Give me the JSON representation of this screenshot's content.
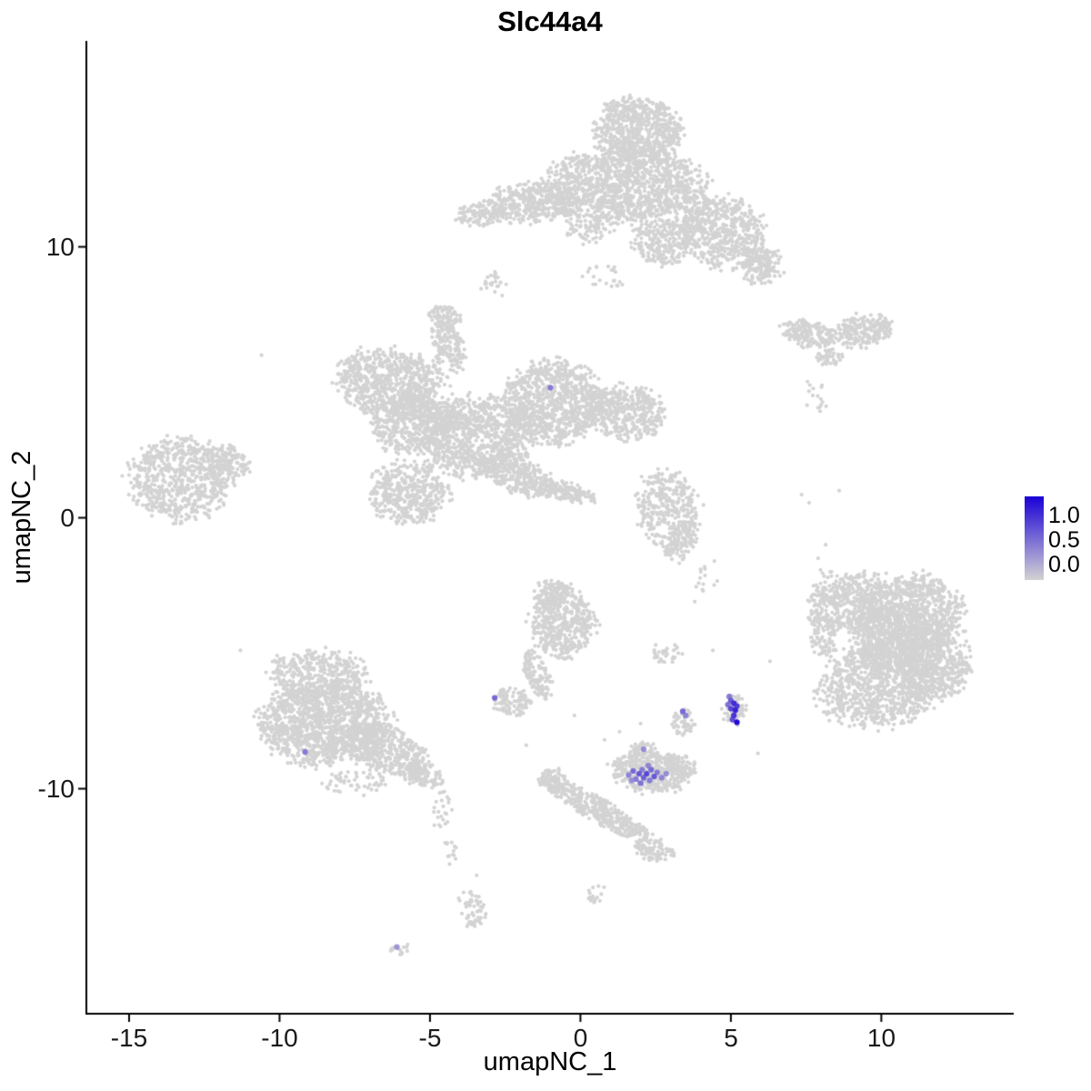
{
  "title": "Slc44a4",
  "axes": {
    "x_label": "umapNC_1",
    "y_label": "umapNC_2",
    "x_ticks": [
      "-15",
      "-10",
      "-5",
      "0",
      "5",
      "10"
    ],
    "y_ticks": [
      "10",
      "0",
      "-10"
    ],
    "x_tick_values": [
      -15,
      -10,
      -5,
      0,
      5,
      10
    ],
    "y_tick_values": [
      10,
      0,
      -10
    ],
    "x_range": [
      -16.42,
      14.4
    ],
    "y_range": [
      -18.31,
      17.6
    ]
  },
  "legend": {
    "tick_labels": [
      "1.0",
      "0.5",
      "0.0"
    ]
  },
  "chart_data": {
    "type": "scatter",
    "title": "Slc44a4",
    "xlabel": "umapNC_1",
    "ylabel": "umapNC_2",
    "description": "UMAP feature plot of gene expression for Slc44a4; grey cells have zero expression, purple-blue cells express the gene",
    "color_low": "#d3d3d3",
    "color_high": "#1a00d6",
    "color_scale_ticks": [
      1.0,
      0.5,
      0.0
    ],
    "color_max": 1.2,
    "point_radius": 2.1,
    "expressing_point_radius": 3.1,
    "clusters_format": "[center_x, center_y, radius_x, radius_y, rotation_deg, n_cells]",
    "clusters": [
      [
        1.9,
        14.3,
        1.5,
        1.15,
        0,
        650
      ],
      [
        1.5,
        12.3,
        2.6,
        1.35,
        0,
        1250
      ],
      [
        -1.6,
        11.6,
        1.6,
        0.75,
        5,
        420
      ],
      [
        -3.3,
        11.2,
        0.8,
        0.45,
        10,
        110
      ],
      [
        4.7,
        10.6,
        1.5,
        1.3,
        -20,
        580
      ],
      [
        6.0,
        9.3,
        0.75,
        0.7,
        0,
        170
      ],
      [
        2.7,
        10.2,
        1.0,
        0.9,
        0,
        250
      ],
      [
        0.3,
        10.7,
        0.8,
        0.6,
        0,
        80
      ],
      [
        -2.8,
        8.6,
        0.5,
        0.45,
        0,
        22
      ],
      [
        0.9,
        8.9,
        1.0,
        0.5,
        0,
        22
      ],
      [
        -6.3,
        5.0,
        1.8,
        1.25,
        -10,
        750
      ],
      [
        -5.6,
        3.5,
        1.4,
        1.1,
        0,
        480
      ],
      [
        -3.5,
        3.0,
        1.9,
        1.5,
        0,
        950
      ],
      [
        -4.4,
        6.3,
        0.55,
        0.95,
        15,
        150
      ],
      [
        -4.5,
        7.4,
        0.5,
        0.45,
        0,
        85
      ],
      [
        -0.9,
        4.3,
        1.6,
        1.5,
        0,
        850
      ],
      [
        1.5,
        3.9,
        1.3,
        1.0,
        -15,
        420
      ],
      [
        -5.7,
        0.9,
        1.3,
        1.2,
        0,
        430
      ],
      [
        -2.0,
        1.5,
        1.5,
        0.6,
        -20,
        330
      ],
      [
        -0.3,
        0.9,
        0.8,
        0.35,
        -15,
        110
      ],
      [
        -13.3,
        1.4,
        1.75,
        1.5,
        0,
        680
      ],
      [
        -11.7,
        2.1,
        0.8,
        0.55,
        -25,
        110
      ],
      [
        7.6,
        6.8,
        0.95,
        0.5,
        -12,
        170
      ],
      [
        9.4,
        6.9,
        1.0,
        0.6,
        8,
        210
      ],
      [
        8.3,
        5.9,
        0.5,
        0.3,
        0,
        45
      ],
      [
        7.8,
        4.5,
        0.4,
        0.7,
        0,
        16
      ],
      [
        8.9,
        -3.1,
        1.4,
        1.0,
        20,
        420
      ],
      [
        10.9,
        -3.6,
        1.8,
        1.5,
        0,
        850
      ],
      [
        9.9,
        -6.2,
        2.0,
        1.5,
        10,
        850
      ],
      [
        11.8,
        -5.4,
        1.2,
        1.3,
        0,
        400
      ],
      [
        10.6,
        -4.6,
        1.6,
        1.4,
        0,
        650
      ],
      [
        8.1,
        -4.3,
        0.5,
        0.8,
        0,
        80
      ],
      [
        8.2,
        -2.4,
        0.35,
        0.6,
        0,
        18
      ],
      [
        2.95,
        0.3,
        1.05,
        1.5,
        10,
        380
      ],
      [
        3.3,
        -1.0,
        0.6,
        0.6,
        0,
        60
      ],
      [
        4.2,
        -2.2,
        0.5,
        0.5,
        0,
        12
      ],
      [
        -8.7,
        -5.8,
        1.7,
        0.9,
        0,
        400
      ],
      [
        -8.5,
        -7.6,
        2.2,
        1.5,
        0,
        1250
      ],
      [
        -6.5,
        -8.6,
        1.5,
        0.85,
        -25,
        430
      ],
      [
        -5.3,
        -9.5,
        0.7,
        0.45,
        -20,
        110
      ],
      [
        -7.5,
        -9.8,
        1.2,
        0.5,
        0,
        55
      ],
      [
        -4.6,
        -10.8,
        0.4,
        0.8,
        0,
        22
      ],
      [
        -4.3,
        -12.3,
        0.3,
        0.6,
        0,
        12
      ],
      [
        -0.6,
        -3.9,
        1.1,
        1.25,
        0,
        430
      ],
      [
        -0.9,
        -2.8,
        0.65,
        0.5,
        0,
        110
      ],
      [
        -1.4,
        -5.8,
        0.4,
        0.95,
        20,
        120
      ],
      [
        -2.3,
        -6.8,
        0.65,
        0.5,
        0,
        100
      ],
      [
        2.9,
        -5.0,
        0.55,
        0.35,
        0,
        30
      ],
      [
        2.3,
        -9.4,
        1.3,
        0.75,
        -5,
        400
      ],
      [
        2.1,
        -8.6,
        0.45,
        0.35,
        0,
        55
      ],
      [
        3.3,
        -9.2,
        0.5,
        0.45,
        0,
        85
      ],
      [
        3.4,
        -7.5,
        0.4,
        0.55,
        0,
        55
      ],
      [
        5.1,
        -7.1,
        0.42,
        0.6,
        0,
        60
      ],
      [
        0.6,
        -10.8,
        2.2,
        0.42,
        -33,
        400
      ],
      [
        -0.9,
        -9.7,
        0.5,
        0.4,
        0,
        65
      ],
      [
        2.5,
        -12.3,
        0.65,
        0.45,
        -20,
        85
      ],
      [
        0.5,
        -13.9,
        0.35,
        0.5,
        0,
        14
      ],
      [
        -3.6,
        -14.5,
        0.4,
        0.75,
        15,
        55
      ],
      [
        -6.0,
        -15.9,
        0.35,
        0.25,
        0,
        14
      ]
    ],
    "scattered_points_format": "[x, y] single zero-expression cells",
    "scattered_points": [
      [
        -10.6,
        6.0
      ],
      [
        -3.3,
        8.45
      ],
      [
        -2.6,
        8.2
      ],
      [
        4.0,
        -2.0
      ],
      [
        3.8,
        -3.1
      ],
      [
        4.45,
        -1.6
      ],
      [
        7.35,
        0.85
      ],
      [
        7.6,
        0.55
      ],
      [
        8.15,
        -1.0
      ],
      [
        7.9,
        -1.5
      ],
      [
        -4.65,
        -11.4
      ],
      [
        -4.5,
        -12.0
      ],
      [
        0.45,
        -14.2
      ],
      [
        0.6,
        -13.6
      ],
      [
        -3.45,
        -13.2
      ],
      [
        2.0,
        -7.6
      ],
      [
        1.3,
        -7.9
      ],
      [
        4.4,
        -4.9
      ],
      [
        2.5,
        -4.7
      ],
      [
        3.1,
        -4.9
      ],
      [
        -0.2,
        -7.3
      ],
      [
        5.9,
        -8.7
      ],
      [
        -11.3,
        -4.9
      ],
      [
        8.6,
        1.0
      ],
      [
        8.3,
        -2.0
      ],
      [
        6.3,
        -5.3
      ],
      [
        -1.8,
        -8.4
      ],
      [
        0.8,
        -8.2
      ]
    ],
    "expressing_points_format": "[x, y, expression_value]",
    "expressing_points": [
      [
        -1.0,
        4.8,
        0.5
      ],
      [
        -9.15,
        -8.65,
        0.5
      ],
      [
        -2.85,
        -6.65,
        0.6
      ],
      [
        -6.1,
        -15.85,
        0.35
      ],
      [
        1.6,
        -9.5,
        0.45
      ],
      [
        1.75,
        -9.35,
        0.6
      ],
      [
        1.85,
        -9.65,
        0.5
      ],
      [
        1.95,
        -9.45,
        0.7
      ],
      [
        2.05,
        -9.3,
        0.5
      ],
      [
        2.1,
        -9.6,
        0.65
      ],
      [
        2.2,
        -9.45,
        0.8
      ],
      [
        2.3,
        -9.7,
        0.5
      ],
      [
        2.35,
        -9.3,
        0.6
      ],
      [
        2.45,
        -9.55,
        0.7
      ],
      [
        2.55,
        -9.4,
        0.5
      ],
      [
        2.7,
        -9.6,
        0.45
      ],
      [
        2.85,
        -9.45,
        0.4
      ],
      [
        2.0,
        -9.8,
        0.55
      ],
      [
        2.25,
        -9.15,
        0.45
      ],
      [
        1.7,
        -9.7,
        0.4
      ],
      [
        2.1,
        -8.55,
        0.4
      ],
      [
        3.4,
        -7.15,
        0.6
      ],
      [
        3.5,
        -7.3,
        0.45
      ],
      [
        5.0,
        -6.75,
        0.7
      ],
      [
        5.1,
        -6.85,
        0.95
      ],
      [
        5.2,
        -6.95,
        0.85
      ],
      [
        5.0,
        -7.05,
        0.8
      ],
      [
        5.15,
        -7.1,
        1.0
      ],
      [
        4.9,
        -6.9,
        0.55
      ],
      [
        5.1,
        -7.3,
        0.9
      ],
      [
        5.2,
        -7.55,
        1.15
      ],
      [
        5.05,
        -7.45,
        0.75
      ],
      [
        4.95,
        -6.6,
        0.5
      ]
    ]
  }
}
